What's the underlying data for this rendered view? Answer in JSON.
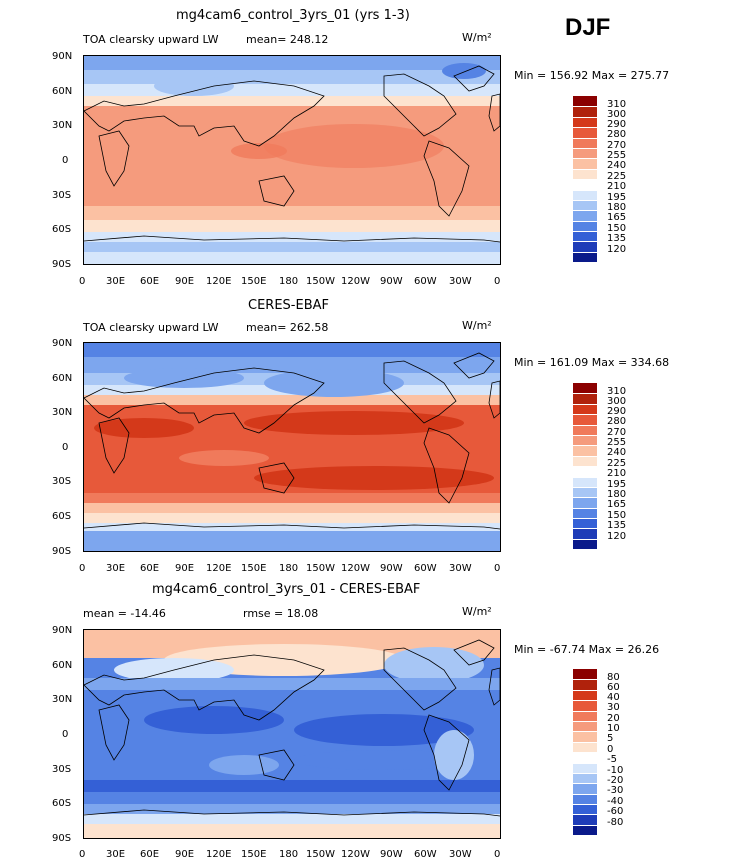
{
  "season": "DJF",
  "panels": [
    {
      "title": "mg4cam6_control_3yrs_01 (yrs 1-3)",
      "left_label": "TOA clearsky upward LW",
      "mean_label": "mean= 248.12",
      "units": "W/m²",
      "minmax": "Min = 156.92 Max = 275.77"
    },
    {
      "title": "CERES-EBAF",
      "left_label": "TOA clearsky upward LW",
      "mean_label": "mean= 262.58",
      "units": "W/m²",
      "minmax": "Min = 161.09 Max = 334.68"
    },
    {
      "title": "mg4cam6_control_3yrs_01 - CERES-EBAF",
      "left_label": "mean = -14.46",
      "mean_label": "rmse =  18.08",
      "units": "W/m²",
      "minmax": "Min = -67.74 Max =  26.26"
    }
  ],
  "lat_labels": [
    "90N",
    "60N",
    "30N",
    "0",
    "30S",
    "60S",
    "90S"
  ],
  "lon_labels": [
    "0",
    "30E",
    "60E",
    "90E",
    "120E",
    "150E",
    "180",
    "150W",
    "120W",
    "90W",
    "60W",
    "30W",
    "0"
  ],
  "colorbar_abs": {
    "levels": [
      "310",
      "300",
      "290",
      "280",
      "270",
      "255",
      "240",
      "225",
      "210",
      "195",
      "180",
      "165",
      "150",
      "135",
      "120"
    ],
    "colors": [
      "#8b0000",
      "#b0220c",
      "#d4391a",
      "#e7593a",
      "#f07a5b",
      "#f59b7d",
      "#fbc1a3",
      "#fde3cf",
      "#ffffff",
      "#d6e6fb",
      "#a7c6f5",
      "#7da6ee",
      "#5583e4",
      "#3460d6",
      "#1e3cb8",
      "#0a1a8a"
    ]
  },
  "colorbar_diff": {
    "levels": [
      "80",
      "60",
      "40",
      "30",
      "20",
      "10",
      "5",
      "0",
      "-5",
      "-10",
      "-20",
      "-30",
      "-40",
      "-60",
      "-80"
    ],
    "colors": [
      "#8b0000",
      "#b0220c",
      "#d4391a",
      "#e7593a",
      "#f07a5b",
      "#f59b7d",
      "#fbc1a3",
      "#fde3cf",
      "#ffffff",
      "#d6e6fb",
      "#a7c6f5",
      "#7da6ee",
      "#5583e4",
      "#3460d6",
      "#1e3cb8",
      "#0a1a8a"
    ]
  }
}
